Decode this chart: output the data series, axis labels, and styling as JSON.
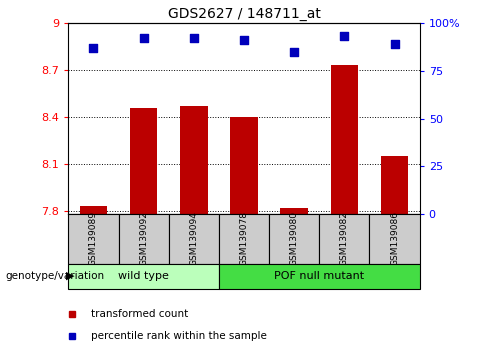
{
  "title": "GDS2627 / 148711_at",
  "samples": [
    "GSM139089",
    "GSM139092",
    "GSM139094",
    "GSM139078",
    "GSM139080",
    "GSM139082",
    "GSM139086"
  ],
  "bar_values": [
    7.83,
    8.46,
    8.47,
    8.4,
    7.82,
    8.73,
    8.15
  ],
  "percentile_values": [
    87,
    92,
    92,
    91,
    85,
    93,
    89
  ],
  "bar_bottom": 7.78,
  "ylim_left": [
    7.78,
    9.0
  ],
  "ylim_right": [
    0,
    100
  ],
  "yticks_left": [
    7.8,
    8.1,
    8.4,
    8.7,
    9.0
  ],
  "yticks_right": [
    0,
    25,
    50,
    75,
    100
  ],
  "ytick_labels_left": [
    "7.8",
    "8.1",
    "8.4",
    "8.7",
    "9"
  ],
  "ytick_labels_right": [
    "0",
    "25",
    "50",
    "75",
    "100%"
  ],
  "groups": [
    {
      "label": "wild type",
      "indices": [
        0,
        1,
        2
      ],
      "color": "#bbffbb"
    },
    {
      "label": "POF null mutant",
      "indices": [
        3,
        4,
        5,
        6
      ],
      "color": "#44dd44"
    }
  ],
  "bar_color": "#bb0000",
  "dot_color": "#0000bb",
  "sample_bg_color": "#cccccc",
  "group_label": "genotype/variation",
  "legend_items": [
    {
      "label": "transformed count",
      "color": "#bb0000"
    },
    {
      "label": "percentile rank within the sample",
      "color": "#0000bb"
    }
  ],
  "bar_width": 0.55,
  "dot_size": 30
}
